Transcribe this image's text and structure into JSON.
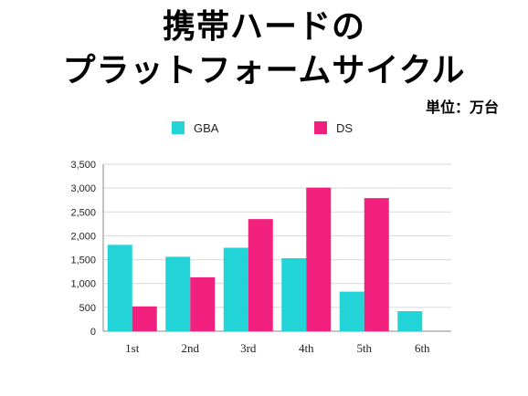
{
  "header": {
    "title_line1": "携帯ハードの",
    "title_line2": "プラットフォームサイクル",
    "unit_note": "単位：万台"
  },
  "colors": {
    "GBA": "#22d3d8",
    "DS": "#f2217f",
    "grid": "#d9d9d9",
    "axis": "#888888"
  },
  "chart_data": {
    "type": "bar",
    "title": "携帯ハードのプラットフォームサイクル",
    "xlabel": "",
    "ylabel": "",
    "categories": [
      "1st",
      "2nd",
      "3rd",
      "4th",
      "5th",
      "6th"
    ],
    "series": [
      {
        "name": "GBA",
        "values": [
          1810,
          1560,
          1750,
          1530,
          830,
          420
        ]
      },
      {
        "name": "DS",
        "values": [
          520,
          1130,
          2350,
          3010,
          2790,
          null
        ]
      }
    ],
    "ylim": [
      0,
      3500
    ],
    "yticks": [
      0,
      500,
      1000,
      1500,
      2000,
      2500,
      3000,
      3500
    ],
    "ytick_labels": [
      "0",
      "500",
      "1,000",
      "1,500",
      "2,000",
      "2,500",
      "3,000",
      "3,500"
    ],
    "grid": true,
    "legend_position": "top"
  }
}
